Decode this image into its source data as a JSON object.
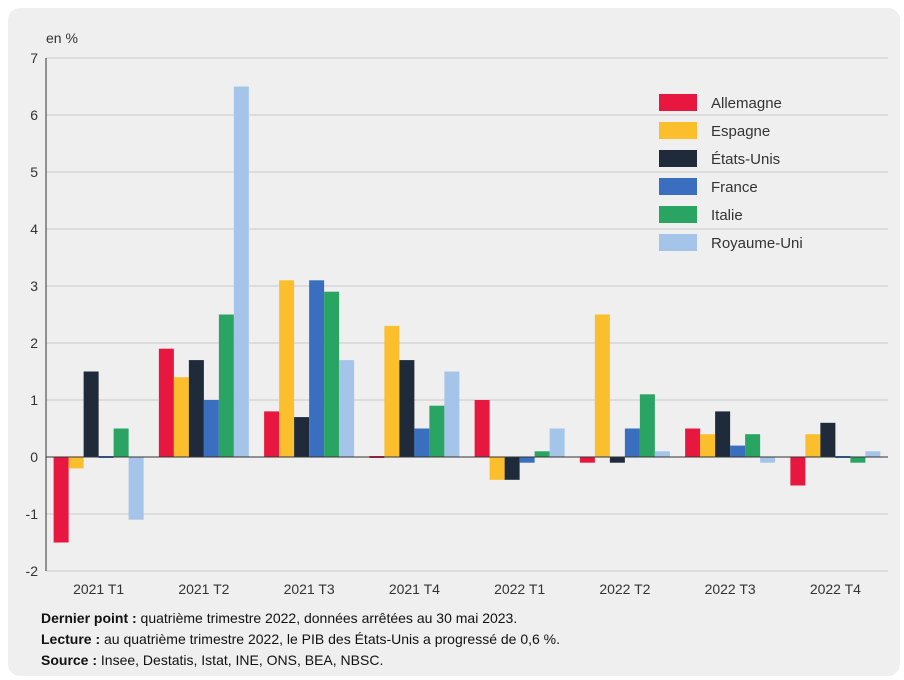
{
  "chart_data": {
    "type": "bar",
    "unit_label": "en %",
    "categories": [
      "2021 T1",
      "2021 T2",
      "2021 T3",
      "2021 T4",
      "2022 T1",
      "2022 T2",
      "2022 T3",
      "2022 T4"
    ],
    "series": [
      {
        "name": "Allemagne",
        "color": "#e8173f",
        "values": [
          -1.5,
          1.9,
          0.8,
          0.0,
          1.0,
          -0.1,
          0.5,
          -0.5
        ]
      },
      {
        "name": "Espagne",
        "color": "#fbbf2d",
        "values": [
          -0.2,
          1.4,
          3.1,
          2.3,
          -0.4,
          2.5,
          0.4,
          0.4
        ]
      },
      {
        "name": "États-Unis",
        "color": "#1f2b3a",
        "values": [
          1.5,
          1.7,
          0.7,
          1.7,
          -0.4,
          -0.1,
          0.8,
          0.6
        ]
      },
      {
        "name": "France",
        "color": "#3a6fbf",
        "values": [
          0.0,
          1.0,
          3.1,
          0.5,
          -0.1,
          0.5,
          0.2,
          0.0
        ]
      },
      {
        "name": "Italie",
        "color": "#2aa463",
        "values": [
          0.5,
          2.5,
          2.9,
          0.9,
          0.1,
          1.1,
          0.4,
          -0.1
        ]
      },
      {
        "name": "Royaume-Uni",
        "color": "#a4c5e9",
        "values": [
          -1.1,
          6.5,
          1.7,
          1.5,
          0.5,
          0.1,
          -0.1,
          0.1
        ]
      }
    ],
    "ylim": [
      -2,
      7
    ],
    "yticks": [
      -2,
      -1,
      0,
      1,
      2,
      3,
      4,
      5,
      6,
      7
    ],
    "grid": true,
    "legend_position": "top-right"
  },
  "notes": {
    "dernier_point_label": "Dernier point :",
    "dernier_point_text": " quatrième trimestre 2022, données arrêtées au 30 mai 2023.",
    "lecture_label": "Lecture :",
    "lecture_text": " au quatrième trimestre 2022, le PIB des États-Unis a progressé de 0,6 %.",
    "source_label": "Source :",
    "source_text": " Insee, Destatis, Istat, INE, ONS, BEA, NBSC."
  }
}
